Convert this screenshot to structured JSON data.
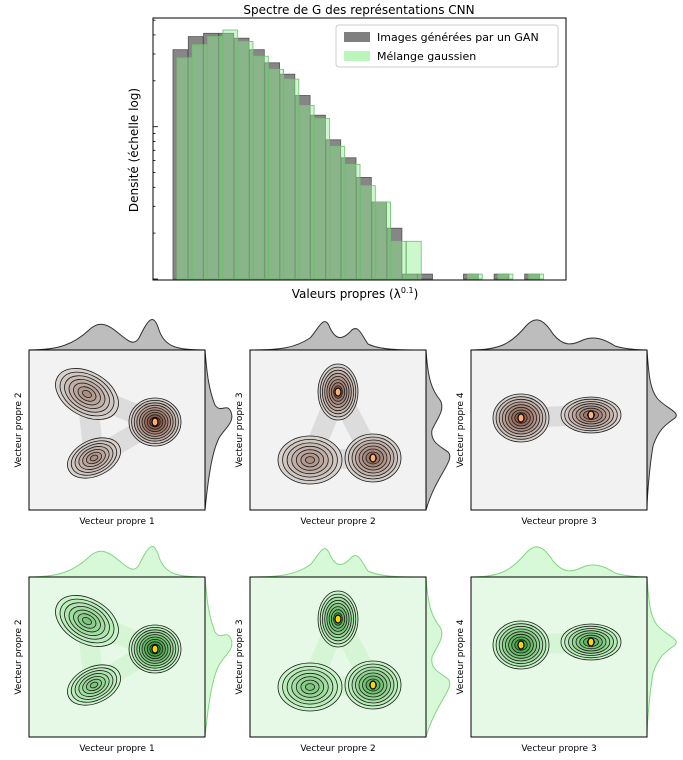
{
  "chart_data": [
    {
      "type": "bar",
      "title": "Spectre de G des représentations CNN",
      "xlabel": "Valeurs propres (λ^0.1)",
      "ylabel": "Densité (échelle log)",
      "y_scale": "log",
      "x_ticks": "none",
      "y_ticks": "minor log ticks, unlabeled",
      "grid": false,
      "legend_position": "top-right",
      "bin_index": [
        0,
        1,
        2,
        3,
        4,
        5,
        6,
        7,
        8,
        9,
        10,
        11,
        12,
        13,
        14,
        15,
        16,
        17,
        18,
        19,
        20,
        21,
        22,
        23
      ],
      "series": [
        {
          "name": "Images générées par un GAN",
          "color": "#7f7f7f",
          "log_values": [
            1.4,
            1.48,
            1.5,
            1.5,
            1.47,
            1.4,
            1.32,
            1.25,
            1.12,
            1.0,
            0.85,
            0.74,
            0.62,
            0.47,
            0.31,
            0.03,
            0.03,
            0.03,
            0.03,
            0.03,
            0.03,
            0.03,
            0.03,
            0.03
          ],
          "present": [
            1,
            1,
            1,
            1,
            1,
            1,
            1,
            1,
            1,
            1,
            1,
            1,
            1,
            1,
            1,
            1,
            1,
            0,
            0,
            1,
            0,
            1,
            0,
            1
          ]
        },
        {
          "name": "Mélange gaussien",
          "color": "#90ee90",
          "log_values": [
            1.35,
            1.43,
            1.48,
            1.52,
            1.45,
            1.36,
            1.28,
            1.22,
            1.06,
            0.98,
            0.81,
            0.7,
            0.57,
            0.47,
            0.23,
            0.23,
            0.03,
            0.03,
            0.03,
            0.03,
            0.03,
            0.03,
            0.03,
            0.03
          ],
          "present": [
            1,
            1,
            1,
            1,
            1,
            1,
            1,
            1,
            1,
            1,
            1,
            1,
            1,
            1,
            1,
            1,
            0,
            0,
            0,
            1,
            0,
            1,
            0,
            1
          ]
        }
      ]
    },
    {
      "type": "contour",
      "series": [
        {
          "name": "Images générées par un GAN"
        }
      ],
      "rows": [
        {
          "fill": "#f2f2f2",
          "panels": [
            {
              "xlabel": "Vecteur propre 1",
              "ylabel": "Vecteur propre 2"
            },
            {
              "xlabel": "Vecteur propre 2",
              "ylabel": "Vecteur propre 3"
            },
            {
              "xlabel": "Vecteur propre 3",
              "ylabel": "Vecteur propre 4"
            }
          ]
        }
      ]
    },
    {
      "type": "contour",
      "series": [
        {
          "name": "Mélange gaussien"
        }
      ],
      "rows": [
        {
          "fill": "#e6f9e6",
          "panels": [
            {
              "xlabel": "Vecteur propre 1",
              "ylabel": "Vecteur propre 2"
            },
            {
              "xlabel": "Vecteur propre 2",
              "ylabel": "Vecteur propre 3"
            },
            {
              "xlabel": "Vecteur propre 3",
              "ylabel": "Vecteur propre 4"
            }
          ]
        }
      ]
    }
  ]
}
